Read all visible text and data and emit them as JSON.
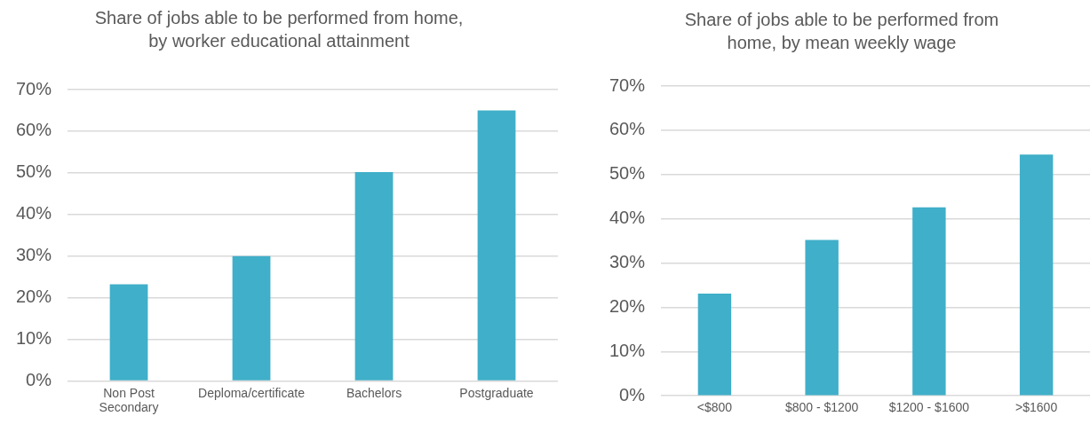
{
  "chart_data": [
    {
      "type": "bar",
      "title": "Share of jobs able to be performed from home, by worker educational attainment",
      "categories": [
        "Non Post Secondary",
        "Deploma/certificate",
        "Bachelors",
        "Postgraduate"
      ],
      "values": [
        23.2,
        30,
        50.2,
        65
      ],
      "color": "#40afc9",
      "ylim": [
        0,
        70
      ],
      "yticks": [
        {
          "value": 0,
          "label": "0%"
        },
        {
          "value": 10,
          "label": "10%"
        },
        {
          "value": 20,
          "label": "20%"
        },
        {
          "value": 30,
          "label": "30%"
        },
        {
          "value": 40,
          "label": "40%"
        },
        {
          "value": 50,
          "label": "50%"
        },
        {
          "value": 60,
          "label": "60%"
        },
        {
          "value": 70,
          "label": "70%"
        }
      ],
      "grid": "y",
      "legend": false
    },
    {
      "type": "bar",
      "title": "Share of jobs able to be performed from home, by mean weekly wage",
      "categories": [
        "<$800",
        "$800 - $1200",
        "$1200 - $1600",
        ">$1600"
      ],
      "values": [
        23.1,
        35.2,
        42.6,
        54.5
      ],
      "color": "#40afc9",
      "ylim": [
        0,
        70
      ],
      "yticks": [
        {
          "value": 0,
          "label": "0%"
        },
        {
          "value": 10,
          "label": "10%"
        },
        {
          "value": 20,
          "label": "20%"
        },
        {
          "value": 30,
          "label": "30%"
        },
        {
          "value": 40,
          "label": "40%"
        },
        {
          "value": 50,
          "label": "50%"
        },
        {
          "value": 60,
          "label": "60%"
        },
        {
          "value": 70,
          "label": "70%"
        }
      ],
      "grid": "y",
      "legend": false
    }
  ]
}
